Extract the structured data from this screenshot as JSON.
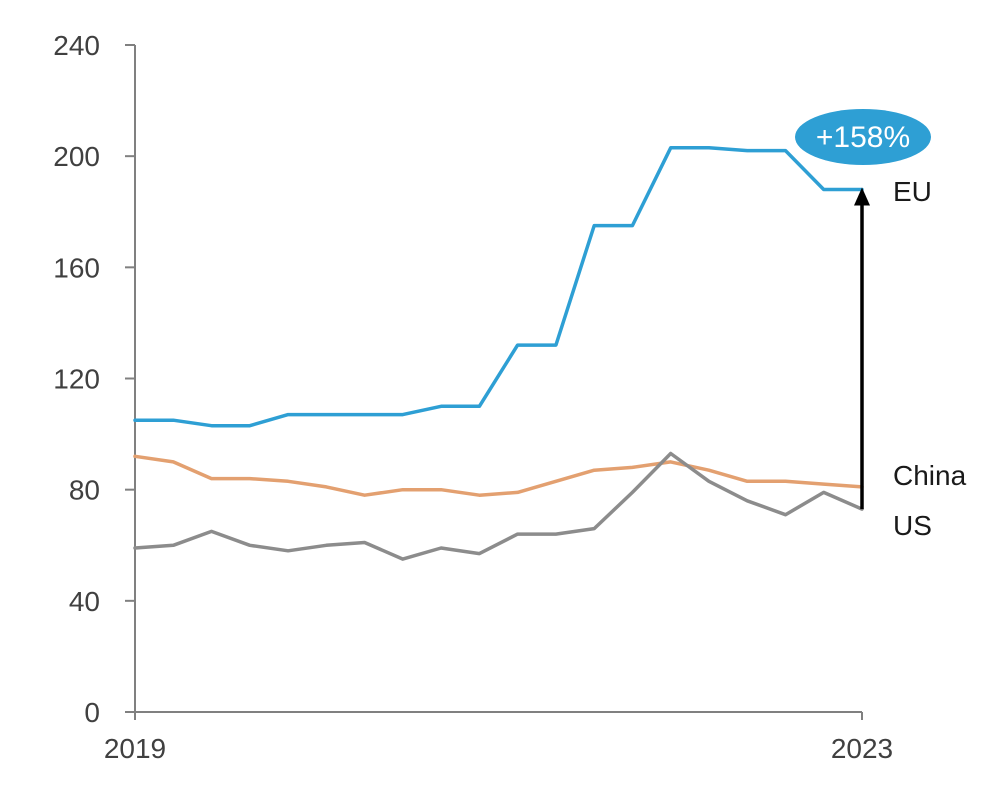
{
  "chart_data": {
    "type": "line",
    "title": "",
    "xlabel": "",
    "ylabel": "",
    "ylim": [
      0,
      240
    ],
    "yticks": [
      "0",
      "40",
      "80",
      "120",
      "160",
      "200",
      "240"
    ],
    "x_tick_labels": [
      "2019",
      "2023"
    ],
    "xlim": [
      0,
      19
    ],
    "grid": false,
    "series": [
      {
        "name": "EU",
        "color": "#2e9fd4",
        "x": [
          0,
          1,
          2,
          3,
          4,
          5,
          6,
          7,
          8,
          9,
          10,
          11,
          12,
          13,
          14,
          15,
          16,
          17,
          18,
          19
        ],
        "values": [
          105,
          105,
          103,
          103,
          107,
          107,
          107,
          107,
          110,
          110,
          132,
          132,
          175,
          175,
          203,
          203,
          202,
          202,
          188,
          188
        ]
      },
      {
        "name": "China",
        "color": "#e3a070",
        "x": [
          0,
          1,
          2,
          3,
          4,
          5,
          6,
          7,
          8,
          9,
          10,
          11,
          12,
          13,
          14,
          15,
          16,
          17,
          18,
          19
        ],
        "values": [
          92,
          90,
          84,
          84,
          83,
          81,
          78,
          80,
          80,
          78,
          79,
          83,
          87,
          88,
          90,
          87,
          83,
          83,
          82,
          81
        ]
      },
      {
        "name": "US",
        "color": "#8c8c8c",
        "x": [
          0,
          1,
          2,
          3,
          4,
          5,
          6,
          7,
          8,
          9,
          10,
          11,
          12,
          13,
          14,
          15,
          16,
          17,
          18,
          19
        ],
        "values": [
          59,
          60,
          65,
          60,
          58,
          60,
          61,
          55,
          59,
          57,
          64,
          64,
          66,
          79,
          93,
          83,
          76,
          71,
          79,
          73
        ]
      }
    ],
    "annotations": {
      "badge_text": "+158%",
      "badge_color": "#2e9fd4",
      "arrow_from": 73,
      "arrow_to": 188,
      "arrow_x": 19
    }
  }
}
